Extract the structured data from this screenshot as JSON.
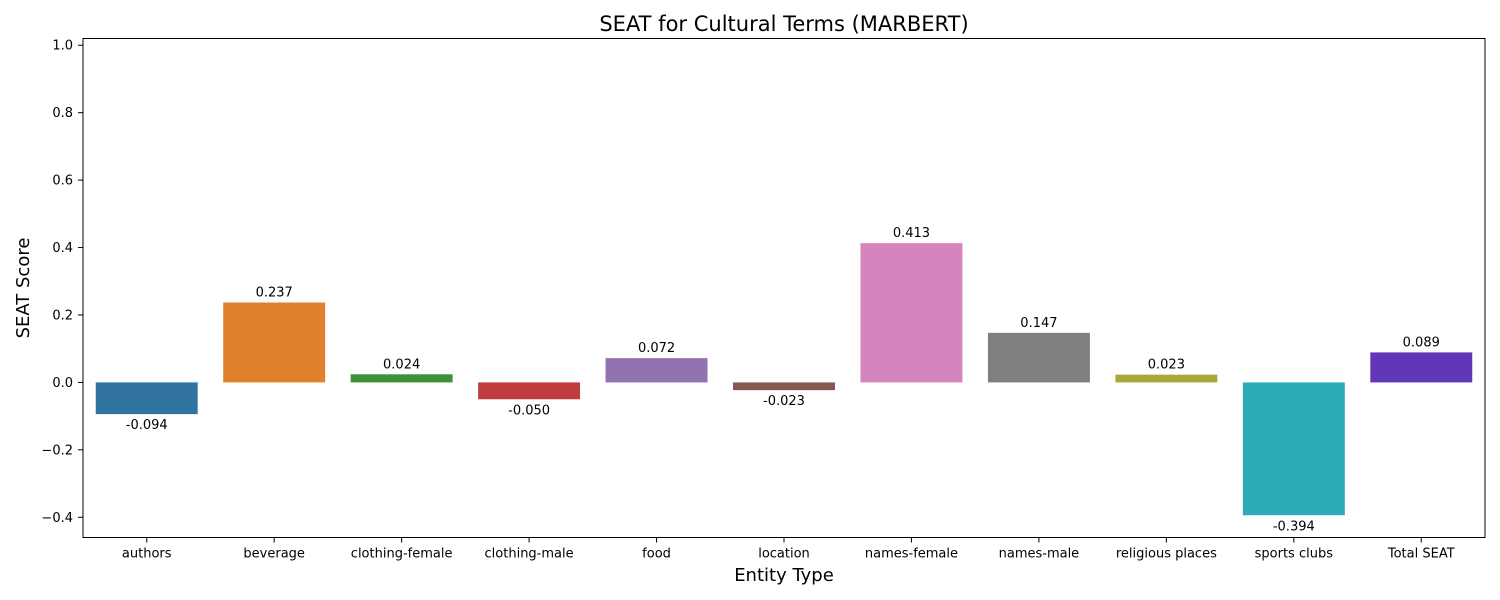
{
  "chart_data": {
    "type": "bar",
    "title": "SEAT for Cultural Terms (MARBERT)",
    "xlabel": "Entity Type",
    "ylabel": "SEAT Score",
    "ylim": [
      -0.46,
      1.02
    ],
    "yticks": [
      -0.4,
      -0.2,
      0.0,
      0.2,
      0.4,
      0.6,
      0.8,
      1.0
    ],
    "ytick_labels": [
      "−0.4",
      "−0.2",
      "0.0",
      "0.2",
      "0.4",
      "0.6",
      "0.8",
      "1.0"
    ],
    "grid": false,
    "categories": [
      "authors",
      "beverage",
      "clothing-female",
      "clothing-male",
      "food",
      "location",
      "names-female",
      "names-male",
      "religious places",
      "sports clubs",
      "Total SEAT"
    ],
    "values": [
      -0.094,
      0.237,
      0.024,
      -0.05,
      0.072,
      -0.023,
      0.413,
      0.147,
      0.023,
      -0.394,
      0.089
    ],
    "value_labels": [
      "-0.094",
      "0.237",
      "0.024",
      "-0.050",
      "0.072",
      "-0.023",
      "0.413",
      "0.147",
      "0.023",
      "-0.394",
      "0.089"
    ],
    "colors": [
      "#3274a1",
      "#e1812c",
      "#3a923a",
      "#c03d3e",
      "#9372b2",
      "#845b53",
      "#d684bd",
      "#7f7f7f",
      "#a9aa35",
      "#2eabb8",
      "#6236b8"
    ]
  }
}
